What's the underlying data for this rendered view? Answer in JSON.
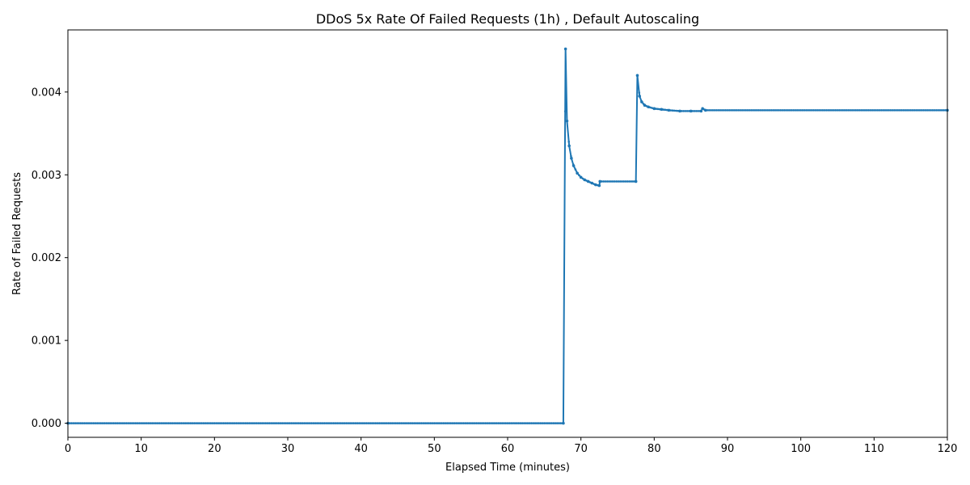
{
  "chart_data": {
    "type": "line",
    "title": "DDoS 5x Rate Of Failed Requests (1h) , Default Autoscaling",
    "xlabel": "Elapsed Time (minutes)",
    "ylabel": "Rate of Failed Requests",
    "xlim": [
      0,
      120
    ],
    "ylim": [
      -0.00017,
      0.00475
    ],
    "x_ticks": [
      0,
      10,
      20,
      30,
      40,
      50,
      60,
      70,
      80,
      90,
      100,
      110,
      120
    ],
    "x_tick_labels": [
      "0",
      "10",
      "20",
      "30",
      "40",
      "50",
      "60",
      "70",
      "80",
      "90",
      "100",
      "110",
      "120"
    ],
    "y_ticks": [
      0,
      0.001,
      0.002,
      0.003,
      0.004
    ],
    "y_tick_labels": [
      "0.000",
      "0.001",
      "0.002",
      "0.003",
      "0.004"
    ],
    "grid": false,
    "series_color": "#1f77b4",
    "series": [
      {
        "x": [
          0,
          67.6,
          67.9,
          68.1,
          68.4,
          68.7,
          69.0,
          69.5,
          70.0,
          70.5,
          71.0,
          71.5,
          72.0,
          72.5,
          72.6,
          77.5,
          77.7,
          78.0,
          78.3,
          78.7,
          79.2,
          80.0,
          81.0,
          82.0,
          83.5,
          85.0,
          86.4,
          86.6,
          87.0,
          120
        ],
        "y": [
          0,
          0,
          0.00452,
          0.00365,
          0.00335,
          0.0032,
          0.00311,
          0.00302,
          0.00297,
          0.00294,
          0.00292,
          0.0029,
          0.00288,
          0.00287,
          0.00292,
          0.00292,
          0.0042,
          0.00395,
          0.00388,
          0.00384,
          0.00382,
          0.0038,
          0.00379,
          0.00378,
          0.00377,
          0.00377,
          0.00377,
          0.0038,
          0.00378,
          0.00378
        ]
      }
    ]
  }
}
